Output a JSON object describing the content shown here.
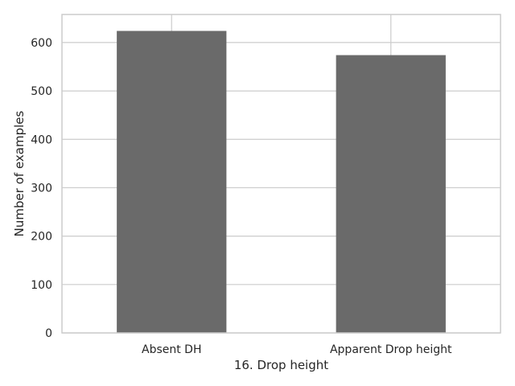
{
  "chart_data": {
    "type": "bar",
    "categories": [
      "Absent DH",
      "Apparent Drop height"
    ],
    "values": [
      624,
      574
    ],
    "title": "",
    "xlabel": "16. Drop height",
    "ylabel": "Number of examples",
    "ylim": [
      0,
      658
    ],
    "yticks": [
      0,
      100,
      200,
      300,
      400,
      500,
      600
    ],
    "grid": true,
    "legend": "none"
  },
  "colors": {
    "bar": "#6a6a6a",
    "grid": "#cccccc",
    "frame": "#cccccc",
    "background": "#ffffff"
  }
}
